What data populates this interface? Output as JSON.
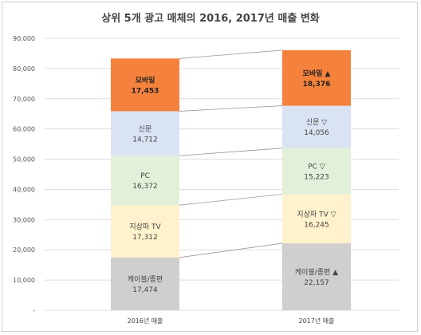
{
  "chart_data": {
    "type": "bar",
    "stacked": true,
    "title": "상위 5개 광고 매체의 2016, 2017년 매출 변화",
    "categories": [
      "2016년 매출",
      "2017년 매출"
    ],
    "ylim": [
      0,
      90000
    ],
    "yticks": [
      "-",
      "10,000",
      "20,000",
      "30,000",
      "40,000",
      "50,000",
      "60,000",
      "70,000",
      "80,000",
      "90,000"
    ],
    "grid": true,
    "series": [
      {
        "name": "케이블/종편",
        "values": [
          17474,
          22157
        ],
        "labels": [
          "17,474",
          "22,157"
        ],
        "markers": [
          "",
          "▲"
        ],
        "color": "#d0cece",
        "text_color": "#444444"
      },
      {
        "name": "지상파 TV",
        "values": [
          17312,
          16245
        ],
        "labels": [
          "17,312",
          "16,245"
        ],
        "markers": [
          "",
          "▽"
        ],
        "color": "#fff2cc",
        "text_color": "#444444"
      },
      {
        "name": "PC",
        "values": [
          16372,
          15223
        ],
        "labels": [
          "16,372",
          "15,223"
        ],
        "markers": [
          "",
          "▽"
        ],
        "color": "#e2f0d9",
        "text_color": "#444444"
      },
      {
        "name": "신문",
        "values": [
          14712,
          14056
        ],
        "labels": [
          "14,712",
          "14,056"
        ],
        "markers": [
          "",
          "▽"
        ],
        "color": "#dae3f3",
        "text_color": "#444444"
      },
      {
        "name": "모바일",
        "values": [
          17453,
          18376
        ],
        "labels": [
          "17,453",
          "18,376"
        ],
        "markers": [
          "",
          "▲"
        ],
        "color": "#f4823c",
        "text_color": "#222222",
        "bold": true
      }
    ]
  }
}
